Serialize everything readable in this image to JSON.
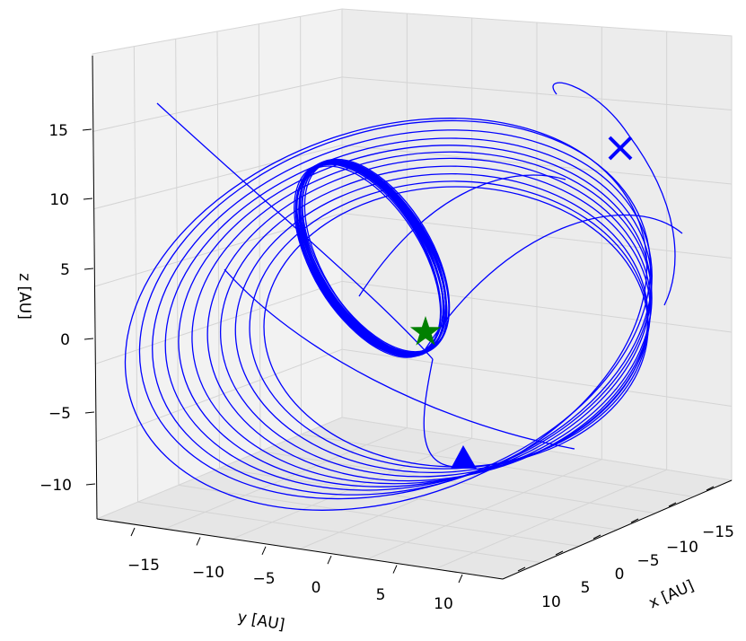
{
  "chart_data": {
    "type": "line3d",
    "title": "",
    "xlabel": "x [AU]",
    "ylabel": "y [AU]",
    "zlabel": "z [AU]",
    "x_ticks": [
      "−15",
      "−10",
      "−5",
      "0",
      "5",
      "10"
    ],
    "y_ticks": [
      "−15",
      "−10",
      "−5",
      "0",
      "5",
      "10"
    ],
    "z_ticks": [
      "−10",
      "−5",
      "0",
      "5",
      "10",
      "15"
    ],
    "xlim": [
      -18,
      13
    ],
    "ylim": [
      -18,
      13
    ],
    "zlim": [
      -12,
      19
    ],
    "grid": true,
    "series": [
      {
        "color": "#0000ff",
        "trajectory": "orbit"
      }
    ],
    "markers": [
      {
        "symbol": "x",
        "color": "#0000ff"
      },
      {
        "symbol": "triangle",
        "color": "#0000ff"
      },
      {
        "symbol": "star",
        "color": "#008000"
      }
    ]
  }
}
